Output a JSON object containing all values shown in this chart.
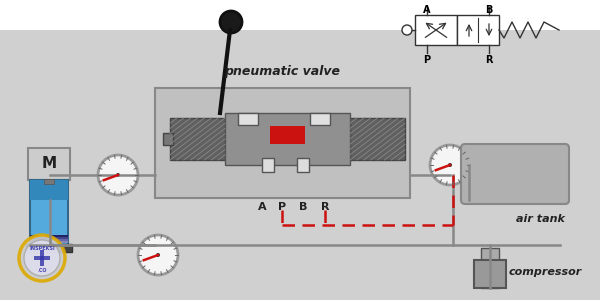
{
  "bg_color": "#ffffff",
  "panel_color": "#d0d0d0",
  "valve_box_color": "#b8b8b8",
  "valve_body_dark": "#555555",
  "valve_body_mid": "#808080",
  "valve_hatch_color": "#909090",
  "red_color": "#cc1111",
  "white": "#ffffff",
  "black": "#111111",
  "pipe_gray": "#888888",
  "gauge_face": "#f0f0f0",
  "gauge_ring": "#aaaaaa",
  "motor_box": "#cccccc",
  "cylinder_blue": "#55aadd",
  "cylinder_dark": "#446688",
  "air_tank_color": "#b0b0b0",
  "compressor_color": "#aaaaaa",
  "text_dark": "#222222",
  "title": "pneumatic valve",
  "air_tank_label": "air tank",
  "compressor_label": "compressor",
  "motor_label": "M",
  "ports": [
    "A",
    "P",
    "B",
    "R"
  ],
  "watermark_ring": "#ddaa00",
  "watermark_bg": "#ddddee",
  "watermark_text": "#3333aa"
}
